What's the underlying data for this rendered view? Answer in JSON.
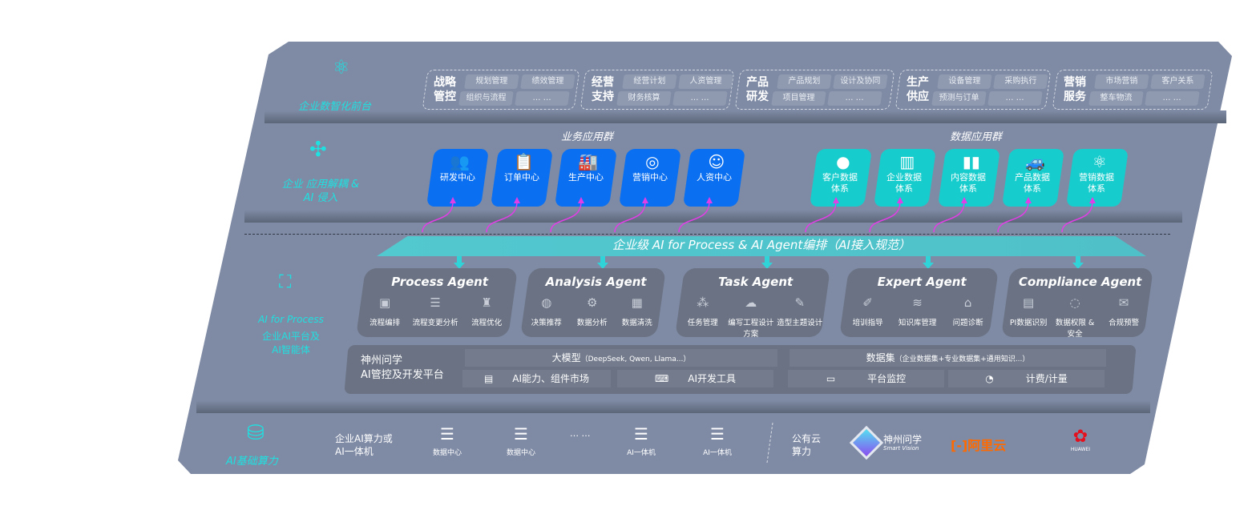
{
  "top": {
    "label": "企业数智化前台",
    "groups": [
      {
        "title": "战略管控",
        "items": [
          "规划管理",
          "绩效管理",
          "组织与流程",
          "… …"
        ]
      },
      {
        "title": "经营支持",
        "items": [
          "经营计划",
          "人资管理",
          "财务核算",
          "… …"
        ]
      },
      {
        "title": "产品研发",
        "items": [
          "产品规划",
          "设计及协同",
          "项目管理",
          "… …"
        ]
      },
      {
        "title": "生产供应",
        "items": [
          "设备管理",
          "采购执行",
          "预测与订单",
          "… …"
        ]
      },
      {
        "title": "营销服务",
        "items": [
          "市场营销",
          "客户关系",
          "整车物流",
          "… …"
        ]
      }
    ]
  },
  "apps": {
    "label": "企业 应用解耦 & AI 侵入",
    "business_title": "业务应用群",
    "business": [
      {
        "label": "研发中心",
        "icon": "team-icon"
      },
      {
        "label": "订单中心",
        "icon": "clipboard-icon"
      },
      {
        "label": "生产中心",
        "icon": "production-icon"
      },
      {
        "label": "营销中心",
        "icon": "target-icon"
      },
      {
        "label": "人资中心",
        "icon": "person-icon"
      }
    ],
    "data_title": "数据应用群",
    "data": [
      {
        "label": "客户数据体系",
        "icon": "user-icon"
      },
      {
        "label": "企业数据体系",
        "icon": "building-icon"
      },
      {
        "label": "内容数据体系",
        "icon": "books-icon"
      },
      {
        "label": "产品数据体系",
        "icon": "car-icon"
      },
      {
        "label": "营销数据体系",
        "icon": "atom-icon"
      }
    ]
  },
  "banner": "企业级 AI for Process & AI Agent编排（AI接入规范）",
  "ai": {
    "label1": "AI for Process",
    "label2": "企业AI平台及AI智能体",
    "agents": [
      {
        "title": "Process Agent",
        "items": [
          "流程编排",
          "流程变更分析",
          "流程优化"
        ]
      },
      {
        "title": "Analysis Agent",
        "items": [
          "决策推荐",
          "数据分析",
          "数据清洗"
        ]
      },
      {
        "title": "Task Agent",
        "items": [
          "任务管理",
          "编写工程设计方案",
          "造型主题设计"
        ]
      },
      {
        "title": "Expert Agent",
        "items": [
          "培训指导",
          "知识库管理",
          "问题诊断"
        ]
      },
      {
        "title": "Compliance Agent",
        "items": [
          "PI数据识别",
          "数据权限 & 安全",
          "合规预警"
        ]
      }
    ]
  },
  "platform": {
    "title1": "神州问学",
    "title2": "AI管控及开发平台",
    "model": "大模型",
    "model_note": "（DeepSeek, Qwen, Llama...）",
    "dataset": "数据集",
    "dataset_note": "（企业数据集+专业数据集+通用知识...）",
    "market": "AI能力、组件市场",
    "devtools": "AI开发工具",
    "monitor": "平台监控",
    "billing": "计费/计量"
  },
  "infra": {
    "label": "AI基础算力",
    "enterprise": "企业AI算力或AI一体机",
    "items": [
      "数据中心",
      "数据中心",
      "AI一体机",
      "AI一体机"
    ],
    "ellipsis": "… …",
    "public": "公有云算力",
    "logos": [
      {
        "name": "神州问学",
        "sub": "Smart Vision"
      },
      {
        "name": "阿里云"
      },
      {
        "name": "HUAWEI"
      }
    ]
  },
  "colors": {
    "panel": "#7f8ba5",
    "blue": "#0a6ff0",
    "teal": "#17cccc",
    "cyan": "#1fe0e0",
    "magenta": "#e23ee6",
    "agent": "#6a7283"
  }
}
